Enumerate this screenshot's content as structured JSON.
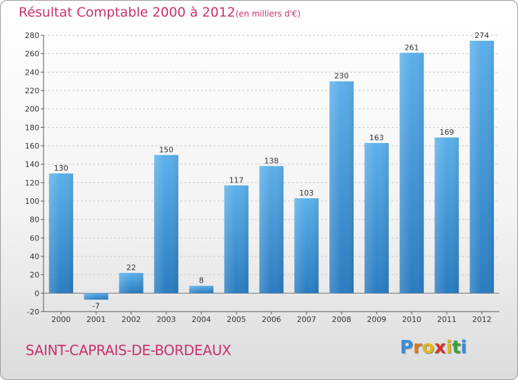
{
  "chart_data": {
    "type": "bar",
    "title": "Résultat Comptable 2000 à 2012",
    "unit_note": "(en milliers d'€)",
    "categories": [
      "2000",
      "2001",
      "2002",
      "2003",
      "2004",
      "2005",
      "2006",
      "2007",
      "2008",
      "2009",
      "2010",
      "2011",
      "2012"
    ],
    "values": [
      130,
      -7,
      22,
      150,
      8,
      117,
      138,
      103,
      230,
      163,
      261,
      169,
      274
    ],
    "ylim": [
      -20,
      280
    ],
    "yticks": [
      -20,
      0,
      20,
      40,
      60,
      80,
      100,
      120,
      140,
      160,
      180,
      200,
      220,
      240,
      260,
      280
    ],
    "grid": true,
    "bar_color": "#4a9fdc",
    "title_color": "#c8326e"
  },
  "footer": {
    "town": "SAINT-CAPRAIS-DE-BORDEAUX",
    "logo_letters": [
      "P",
      "r",
      "o",
      "x",
      "i",
      "t",
      "i"
    ],
    "logo_colors": [
      "#3a8fd6",
      "#e07a1a",
      "#e0b81a",
      "#d6322a",
      "#e0b81a",
      "#3aa040",
      "#3a8fd6"
    ]
  }
}
